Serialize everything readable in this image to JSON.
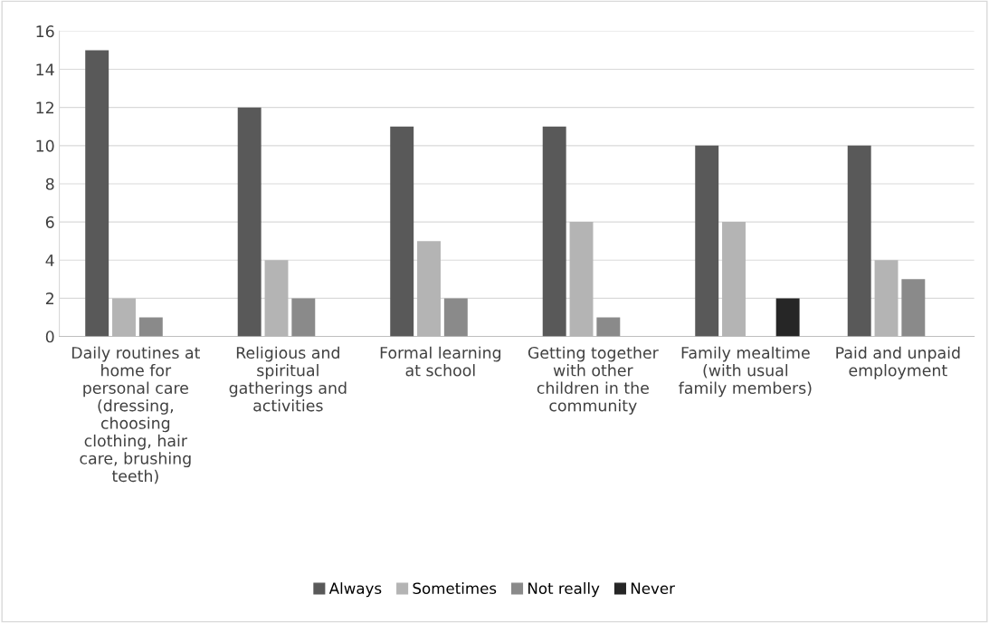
{
  "chart_data": {
    "type": "bar",
    "categories": [
      "Daily routines at\nhome for\npersonal care\n(dressing,\nchoosing\nclothing, hair\ncare, brushing\nteeth)",
      "Religious and\nspiritual\ngatherings and\nactivities",
      "Formal learning\nat school",
      "Getting together\nwith other\nchildren in the\ncommunity",
      "Family mealtime\n(with usual\nfamily members)",
      "Paid and unpaid\nemployment"
    ],
    "series": [
      {
        "name": "Always",
        "color": "#595959",
        "values": [
          15,
          12,
          11,
          11,
          10,
          10
        ]
      },
      {
        "name": "Sometimes",
        "color": "#b4b4b4",
        "values": [
          2,
          4,
          5,
          6,
          6,
          4
        ]
      },
      {
        "name": "Not really",
        "color": "#8a8a8a",
        "values": [
          1,
          2,
          2,
          1,
          0,
          3
        ]
      },
      {
        "name": "Never",
        "color": "#262626",
        "values": [
          0,
          0,
          0,
          0,
          2,
          0
        ]
      }
    ],
    "ylim": [
      0,
      16
    ],
    "yticks": [
      0,
      2,
      4,
      6,
      8,
      10,
      12,
      14,
      16
    ],
    "grid": "y",
    "legend": "bottom"
  }
}
